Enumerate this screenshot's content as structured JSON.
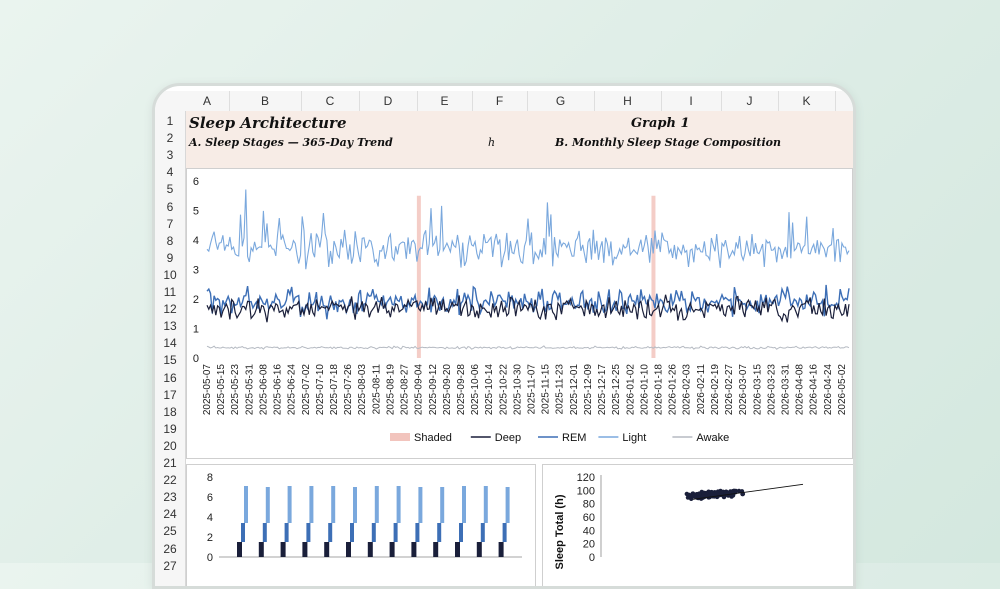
{
  "sheet": {
    "columns": [
      "A",
      "B",
      "C",
      "D",
      "E",
      "F",
      "G",
      "H",
      "I",
      "J",
      "K"
    ],
    "rows": [
      "1",
      "2",
      "3",
      "4",
      "5",
      "6",
      "7",
      "8",
      "9",
      "10",
      "11",
      "12",
      "13",
      "14",
      "15",
      "16",
      "17",
      "18",
      "19",
      "20",
      "21",
      "22",
      "23",
      "24",
      "25",
      "26",
      "27"
    ],
    "cells": {
      "a1": "Sleep Architecture",
      "a2": "A. Sleep Stages — 365-Day Trend",
      "e2": "h",
      "h1": "Graph 1",
      "g2": "B. Monthly Sleep Stage Composition"
    }
  },
  "colors": {
    "shaded": "#f2c4bd",
    "deep": "#1a1f3a",
    "rem": "#3d6fb6",
    "light": "#7aa8dd",
    "awake": "#b5bac2"
  },
  "chart_data": [
    {
      "type": "line",
      "start_date": "2025-05-07",
      "end_date": "2026-05-06",
      "ylim": [
        0,
        6
      ],
      "yticks": [
        0,
        1,
        2,
        3,
        4,
        5,
        6
      ],
      "x_tick_labels": [
        "2025-05-07",
        "2025-05-15",
        "2025-05-23",
        "2025-05-31",
        "2025-06-08",
        "2025-06-16",
        "2025-06-24",
        "2025-07-02",
        "2025-07-10",
        "2025-07-18",
        "2025-07-26",
        "2025-08-03",
        "2025-08-11",
        "2025-08-19",
        "2025-08-27",
        "2025-09-04",
        "2025-09-12",
        "2025-09-20",
        "2025-09-28",
        "2025-10-06",
        "2025-10-14",
        "2025-10-22",
        "2025-10-30",
        "2025-11-07",
        "2025-11-15",
        "2025-11-23",
        "2025-12-01",
        "2025-12-09",
        "2025-12-17",
        "2025-12-25",
        "2026-01-02",
        "2026-01-10",
        "2026-01-18",
        "2026-01-26",
        "2026-02-03",
        "2026-02-11",
        "2026-02-19",
        "2026-02-27",
        "2026-03-07",
        "2026-03-15",
        "2026-03-23",
        "2026-03-31",
        "2026-04-08",
        "2026-04-16",
        "2026-04-24",
        "2026-05-02"
      ],
      "shaded_periods": [
        [
          "2025-09-03",
          "2025-09-05"
        ],
        [
          "2026-01-14",
          "2026-01-16"
        ]
      ],
      "series": [
        {
          "name": "Deep",
          "mean": 1.7,
          "noise": 0.35
        },
        {
          "name": "REM",
          "mean": 1.9,
          "noise": 0.4
        },
        {
          "name": "Light",
          "mean": 3.7,
          "noise": 0.55
        },
        {
          "name": "Awake",
          "mean": 0.35,
          "noise": 0.04
        }
      ],
      "legend": [
        "Shaded",
        "Deep",
        "REM",
        "Light",
        "Awake"
      ]
    },
    {
      "type": "bar",
      "ylim": [
        0,
        8
      ],
      "yticks": [
        0,
        2,
        4,
        6,
        8
      ],
      "months": 13,
      "series": [
        {
          "name": "Deep",
          "values": [
            1.5,
            1.5,
            1.5,
            1.5,
            1.5,
            1.5,
            1.5,
            1.5,
            1.5,
            1.5,
            1.5,
            1.5,
            1.5
          ]
        },
        {
          "name": "REM",
          "values": [
            1.9,
            1.9,
            1.9,
            1.9,
            1.9,
            1.9,
            1.9,
            1.9,
            1.9,
            1.9,
            1.9,
            1.9,
            1.9
          ]
        },
        {
          "name": "Light",
          "values": [
            3.7,
            3.6,
            3.7,
            3.7,
            3.7,
            3.6,
            3.7,
            3.7,
            3.6,
            3.6,
            3.7,
            3.7,
            3.6
          ]
        }
      ]
    },
    {
      "type": "scatter",
      "ylabel": "Sleep Total (h)",
      "ylim": [
        0,
        120
      ],
      "yticks": [
        0,
        20,
        40,
        60,
        80,
        100,
        120
      ],
      "cluster_center": [
        0.55,
        94
      ],
      "points": 180
    }
  ]
}
